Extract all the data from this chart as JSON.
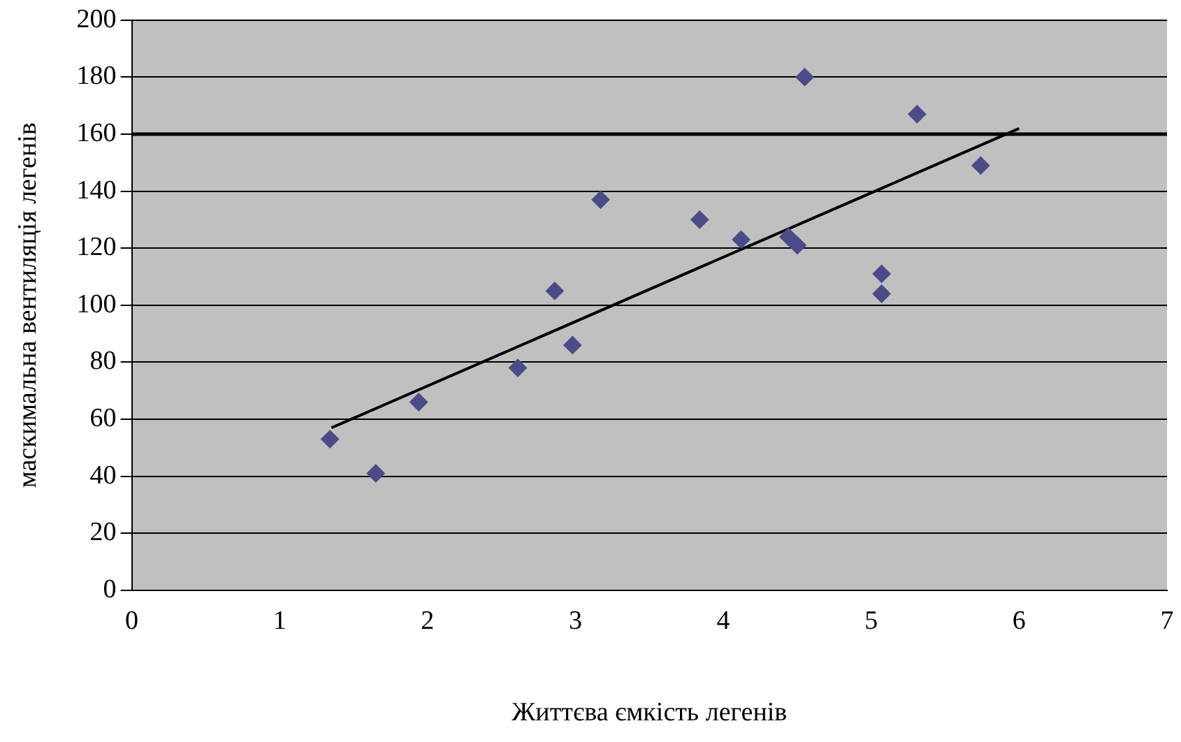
{
  "chart_data": {
    "type": "scatter",
    "xlabel": "Життєва ємкість легенів",
    "ylabel": "маскимальна вентиляція легенів",
    "xlim": [
      0,
      7
    ],
    "xticks": [
      0,
      1,
      2,
      3,
      4,
      5,
      6,
      7
    ],
    "ylim": [
      0,
      200
    ],
    "yticks": [
      0,
      20,
      40,
      60,
      80,
      100,
      120,
      140,
      160,
      180,
      200
    ],
    "grid": "y",
    "legend": false,
    "marker": "diamond",
    "series": [
      {
        "color": "#4b4b8a",
        "x": [
          1.34,
          1.65,
          1.94,
          2.61,
          2.86,
          2.98,
          3.17,
          3.84,
          4.12,
          4.44,
          4.5,
          4.55,
          5.07,
          5.07,
          5.31,
          5.74
        ],
        "values": [
          53,
          41,
          66,
          78,
          105,
          86,
          137,
          130,
          123,
          124,
          121,
          180,
          111,
          104,
          167,
          149
        ]
      },
      {
        "type": "line",
        "color": "#000000",
        "marker": "none",
        "x": [
          1.35,
          6
        ],
        "values": [
          57,
          162
        ]
      }
    ],
    "ref_lines": [
      {
        "axis": "y",
        "value": 160,
        "color": "#000000"
      }
    ]
  }
}
